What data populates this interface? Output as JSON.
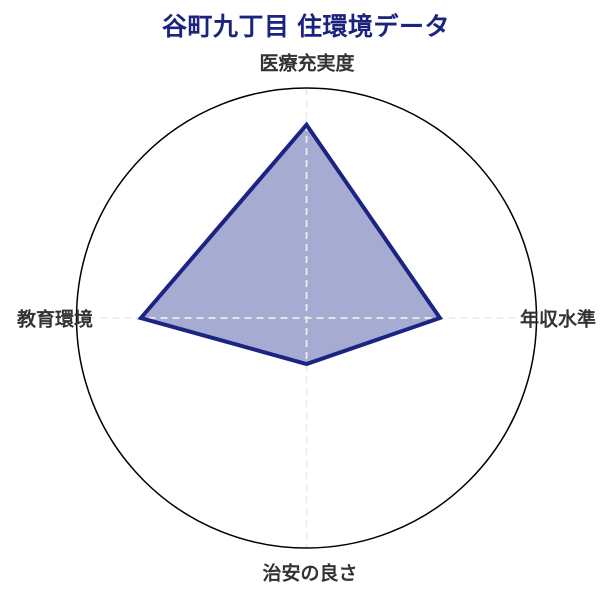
{
  "header": {
    "title": "谷町九丁目 住環境データ"
  },
  "chart_data": {
    "type": "radar",
    "title": "谷町九丁目 住環境データ",
    "categories": [
      "医療充実度",
      "年収水準",
      "治安の良さ",
      "教育環境"
    ],
    "values": [
      4.2,
      2.9,
      1.0,
      3.6
    ],
    "r_range": [
      0,
      5
    ],
    "axis_positions": [
      "top",
      "right",
      "bottom",
      "left"
    ],
    "grid": "dashed cross spokes over fill, solid outer circle, no radial tick labels",
    "legend": "none"
  },
  "colors": {
    "background": "#ffffff",
    "title_text": "#1a237e",
    "axis_label_text": "#333333",
    "polygon_fill": "#a6abd1",
    "polygon_stroke": "#1b2483",
    "outer_circle_stroke": "#000000",
    "grid_dash": "#ececec"
  }
}
